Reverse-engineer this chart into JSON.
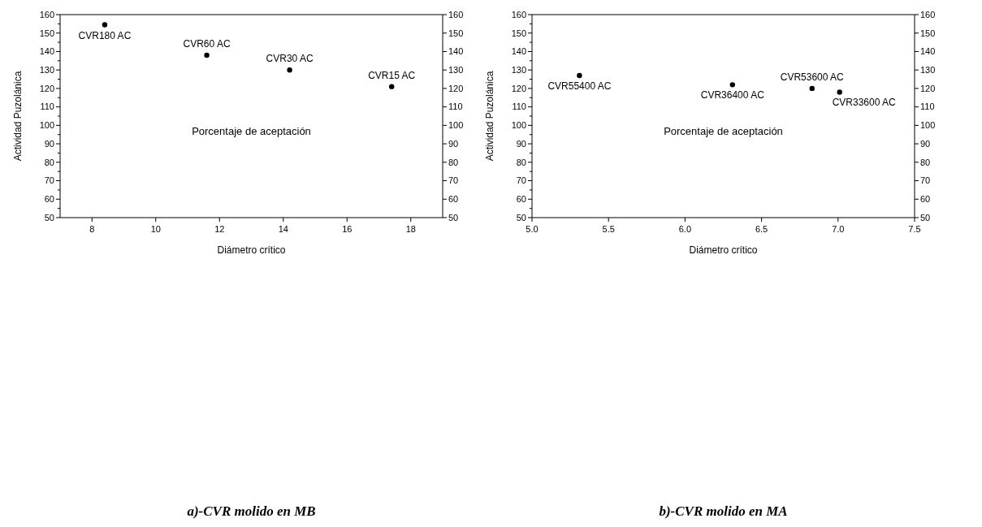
{
  "chart_data": [
    {
      "type": "scatter",
      "title": "a)-CVR molido en MB",
      "xlabel": "Diámetro crítico",
      "ylabel": "Actividad Puzolánica",
      "x": [
        8.4,
        11.6,
        14.2,
        17.4
      ],
      "values": [
        154.5,
        138,
        130,
        121
      ],
      "color": "#000000",
      "marker": "circle",
      "xlim": [
        7,
        19
      ],
      "xticks": [
        8,
        10,
        12,
        14,
        16,
        18
      ],
      "ylim": [
        50,
        160
      ],
      "yticks": [
        50,
        60,
        70,
        80,
        90,
        100,
        110,
        120,
        130,
        140,
        150,
        160
      ],
      "y2lim": [
        50,
        160
      ],
      "y2ticks": [
        50,
        60,
        70,
        80,
        90,
        100,
        110,
        120,
        130,
        140,
        150,
        160
      ],
      "grid": false,
      "annotations": [
        {
          "text": "CVR180 AC",
          "x": 8.4,
          "y": 154.5
        },
        {
          "text": "CVR60 AC",
          "x": 11.6,
          "y": 138
        },
        {
          "text": "CVR30 AC",
          "x": 14.2,
          "y": 130
        },
        {
          "text": "CVR15 AC",
          "x": 17.4,
          "y": 121
        },
        "Porcentaje de aceptación"
      ]
    },
    {
      "type": "scatter",
      "title": "b)-CVR molido en MA",
      "xlabel": "Diámetro crítico",
      "ylabel": "Actividad Puzolánica",
      "x": [
        5.31,
        6.31,
        6.83,
        7.01
      ],
      "values": [
        127,
        122,
        120,
        118
      ],
      "color": "#000000",
      "marker": "circle",
      "xlim": [
        5,
        7.5
      ],
      "xticks": [
        {
          "value": 5,
          "label": "5.0"
        },
        {
          "value": 5.5,
          "label": "5.5"
        },
        {
          "value": 6,
          "label": "6.0"
        },
        {
          "value": 6.5,
          "label": "6.5"
        },
        {
          "value": 7,
          "label": "7.0"
        },
        {
          "value": 7.5,
          "label": "7.5"
        }
      ],
      "ylim": [
        50,
        160
      ],
      "yticks": [
        50,
        60,
        70,
        80,
        90,
        100,
        110,
        120,
        130,
        140,
        150,
        160
      ],
      "y2lim": [
        50,
        160
      ],
      "y2ticks": [
        50,
        60,
        70,
        80,
        90,
        100,
        110,
        120,
        130,
        140,
        150,
        160
      ],
      "grid": false,
      "annotations": [
        {
          "text": "CVR55400 AC",
          "x": 5.31,
          "y": 127
        },
        {
          "text": "CVR36400 AC",
          "x": 6.31,
          "y": 122
        },
        {
          "text": "CVR53600 AC",
          "x": 6.83,
          "y": 120
        },
        {
          "text": "CVR33600 AC",
          "x": 7.01,
          "y": 118
        },
        "Porcentaje de aceptación"
      ]
    }
  ]
}
